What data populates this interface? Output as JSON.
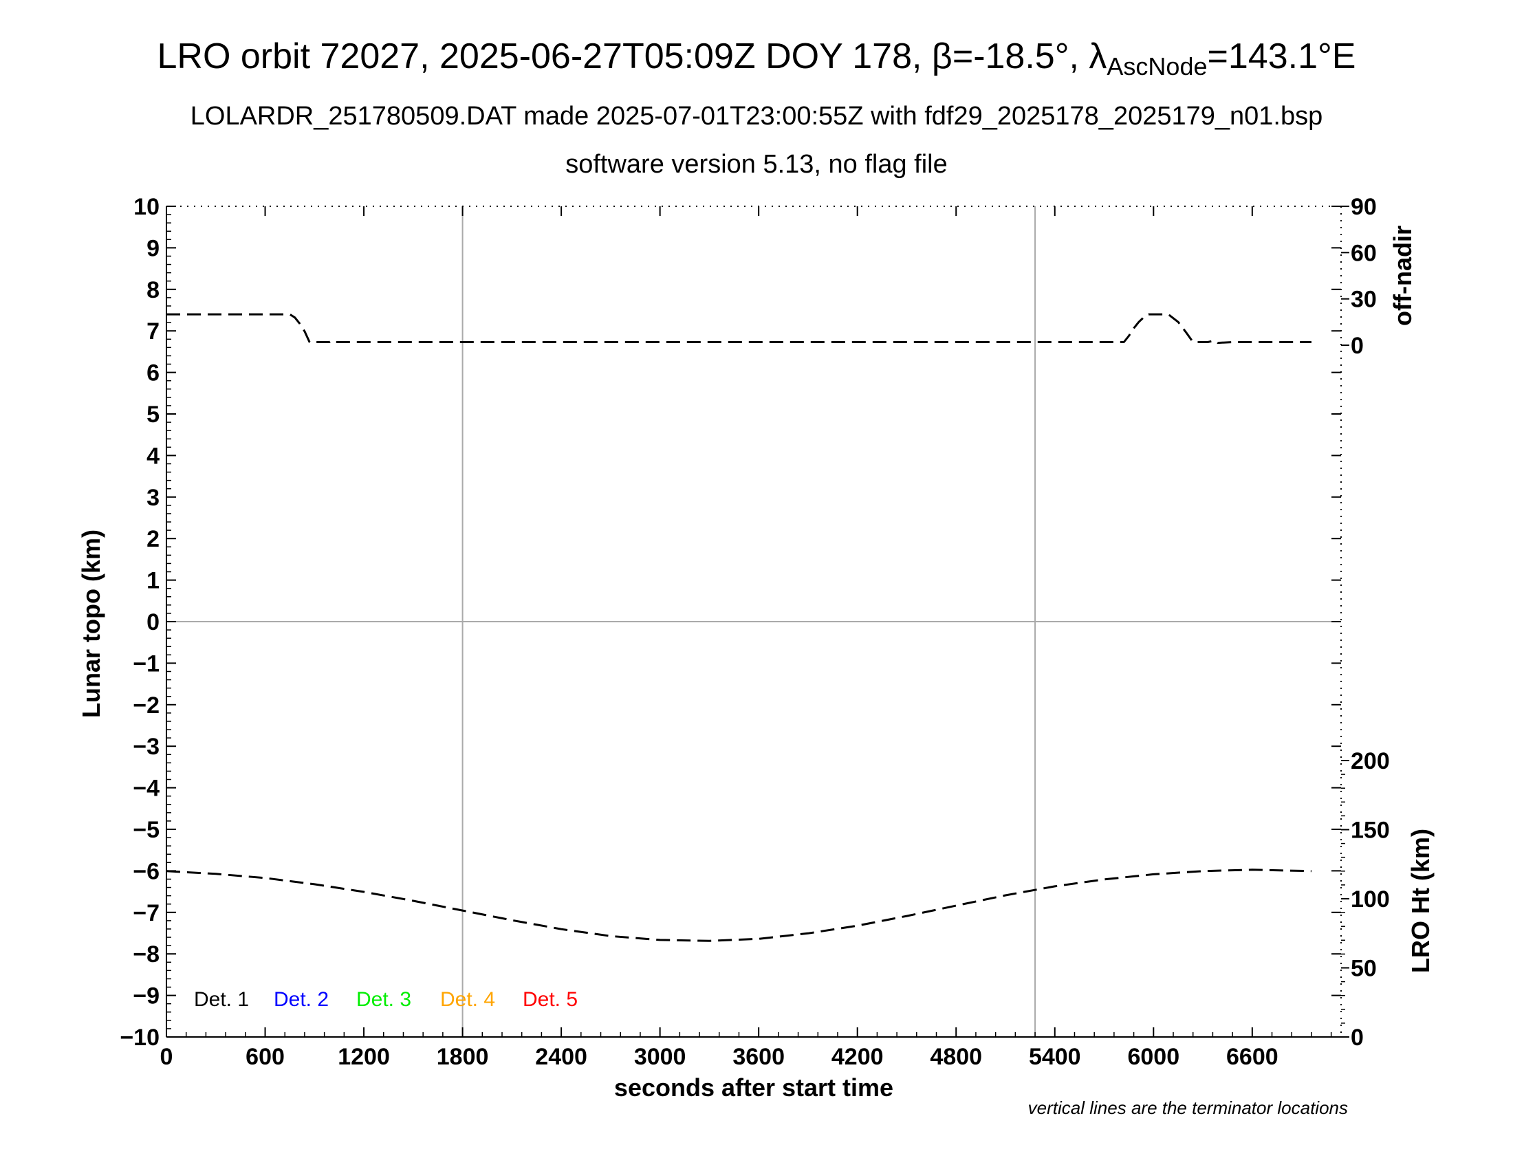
{
  "header": {
    "title_main": "LRO orbit 72027, 2025-06-27T05:09Z DOY 178, β=-18.5°, λ",
    "title_sub": "AscNode",
    "title_end": "=143.1°E",
    "subtitle": "LOLARDR_251780509.DAT made 2025-07-01T23:00:55Z with fdf29_2025178_2025179_n01.bsp",
    "subtitle2": "software version 5.13, no flag file"
  },
  "footnote": "vertical lines are the terminator locations",
  "chart_data": {
    "type": "line",
    "xlabel": "seconds after start time",
    "ylabel": "Lunar topo (km)",
    "y2label_top": "off-nadir",
    "y2label_bottom": "LRO Ht (km)",
    "xlim": [
      0,
      7140
    ],
    "ylim": [
      -10,
      10
    ],
    "x_ticks": [
      "0",
      "600",
      "1200",
      "1800",
      "2400",
      "3000",
      "3600",
      "4200",
      "4800",
      "5400",
      "6000",
      "6600"
    ],
    "y_ticks": [
      "10",
      "9",
      "8",
      "7",
      "6",
      "5",
      "4",
      "3",
      "2",
      "1",
      "0",
      "−1",
      "−2",
      "−3",
      "−4",
      "−5",
      "−6",
      "−7",
      "−8",
      "−9",
      "−10"
    ],
    "offnadir_ticks": [
      "90",
      "60",
      "30",
      "0"
    ],
    "offnadir_tick_values": [
      90,
      60,
      30,
      0
    ],
    "height_ticks": [
      "200",
      "150",
      "100",
      "50",
      "0"
    ],
    "height_tick_values": [
      200,
      150,
      100,
      50,
      0
    ],
    "terminator_x": [
      1800,
      5280
    ],
    "grid": "zero line and terminator lines",
    "legend_position": "bottom-left",
    "legend": [
      {
        "name": "Det. 1",
        "color": "#000000"
      },
      {
        "name": "Det. 2",
        "color": "#0000ff"
      },
      {
        "name": "Det. 3",
        "color": "#00ee00"
      },
      {
        "name": "Det. 4",
        "color": "#ffa500"
      },
      {
        "name": "Det. 5",
        "color": "#ff0000"
      }
    ],
    "series": [
      {
        "axis": "off-nadir (deg)",
        "style": "dashed",
        "x": [
          0,
          300,
          600,
          750,
          780,
          810,
          840,
          870,
          990,
          1000,
          1020,
          1500,
          2400,
          3600,
          4800,
          5700,
          5820,
          5850,
          5880,
          5910,
          5940,
          5970,
          6030,
          6090,
          6150,
          6200,
          6240,
          6330,
          6370,
          6390,
          6480,
          6960
        ],
        "values": [
          20,
          20,
          20,
          20,
          18,
          14,
          9,
          2,
          2,
          3,
          2,
          2,
          2,
          2,
          2,
          2,
          2,
          6,
          11,
          15,
          18,
          20,
          20,
          20,
          15,
          8,
          2,
          2,
          3,
          1.5,
          2,
          2
        ]
      },
      {
        "axis": "LRO Ht (km)",
        "style": "dashed",
        "x": [
          0,
          300,
          600,
          900,
          1200,
          1500,
          1800,
          2100,
          2400,
          2700,
          3000,
          3300,
          3600,
          3900,
          4200,
          4500,
          4800,
          5100,
          5400,
          5700,
          6000,
          6300,
          6600,
          6960
        ],
        "values": [
          120,
          118,
          115,
          110.5,
          105,
          98.5,
          91.5,
          84.5,
          78,
          73,
          70.2,
          69.5,
          71,
          75,
          80.5,
          87.5,
          95,
          102.5,
          109,
          114,
          117.7,
          120,
          121,
          120
        ]
      }
    ]
  }
}
